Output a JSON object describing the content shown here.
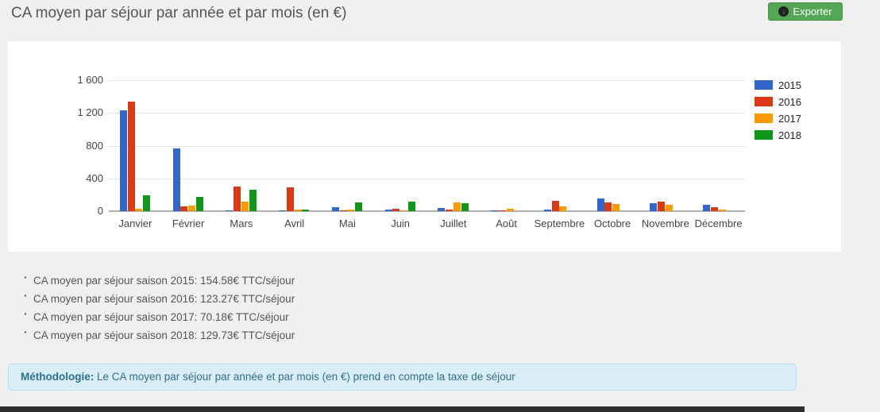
{
  "header": {
    "title": "CA moyen par séjour par année et par mois (en €)",
    "export_button": {
      "label": "Exporter",
      "icon": "download-circle-icon",
      "bg_color": "#54a754"
    }
  },
  "chart_data": {
    "type": "bar",
    "title": "CA moyen par séjour par année et par mois (en €)",
    "categories": [
      "Janvier",
      "Février",
      "Mars",
      "Avril",
      "Mai",
      "Juin",
      "Juillet",
      "Août",
      "Septembre",
      "Octobre",
      "Novembre",
      "Décembre"
    ],
    "series": [
      {
        "name": "2015",
        "color": "#3366cc",
        "values": [
          1230,
          770,
          10,
          5,
          50,
          15,
          40,
          10,
          15,
          160,
          100,
          75
        ]
      },
      {
        "name": "2016",
        "color": "#dc3912",
        "values": [
          1340,
          60,
          300,
          295,
          10,
          25,
          15,
          10,
          125,
          110,
          120,
          50
        ]
      },
      {
        "name": "2017",
        "color": "#ff9900",
        "values": [
          25,
          65,
          115,
          15,
          15,
          10,
          105,
          30,
          60,
          90,
          80,
          20
        ]
      },
      {
        "name": "2018",
        "color": "#109618",
        "values": [
          190,
          175,
          265,
          20,
          110,
          120,
          100,
          0,
          0,
          0,
          0,
          0
        ]
      }
    ],
    "xlabel": "",
    "ylabel": "",
    "ylim": [
      0,
      1600
    ],
    "yticks": [
      0,
      400,
      800,
      1200,
      1600
    ],
    "ytick_labels": [
      "0",
      "400",
      "800",
      "1 200",
      "1 600"
    ],
    "grid": true,
    "legend_position": "right"
  },
  "summary_lines": [
    "CA moyen par séjour saison 2015: 154.58€ TTC/séjour",
    "CA moyen par séjour saison 2016: 123.27€ TTC/séjour",
    "CA moyen par séjour saison 2017: 70.18€ TTC/séjour",
    "CA moyen par séjour saison 2018: 129.73€ TTC/séjour"
  ],
  "methodology": {
    "label": "Méthodologie:",
    "text": " Le CA moyen par séjour par année et par mois (en €) prend en compte la taxe de séjour"
  }
}
